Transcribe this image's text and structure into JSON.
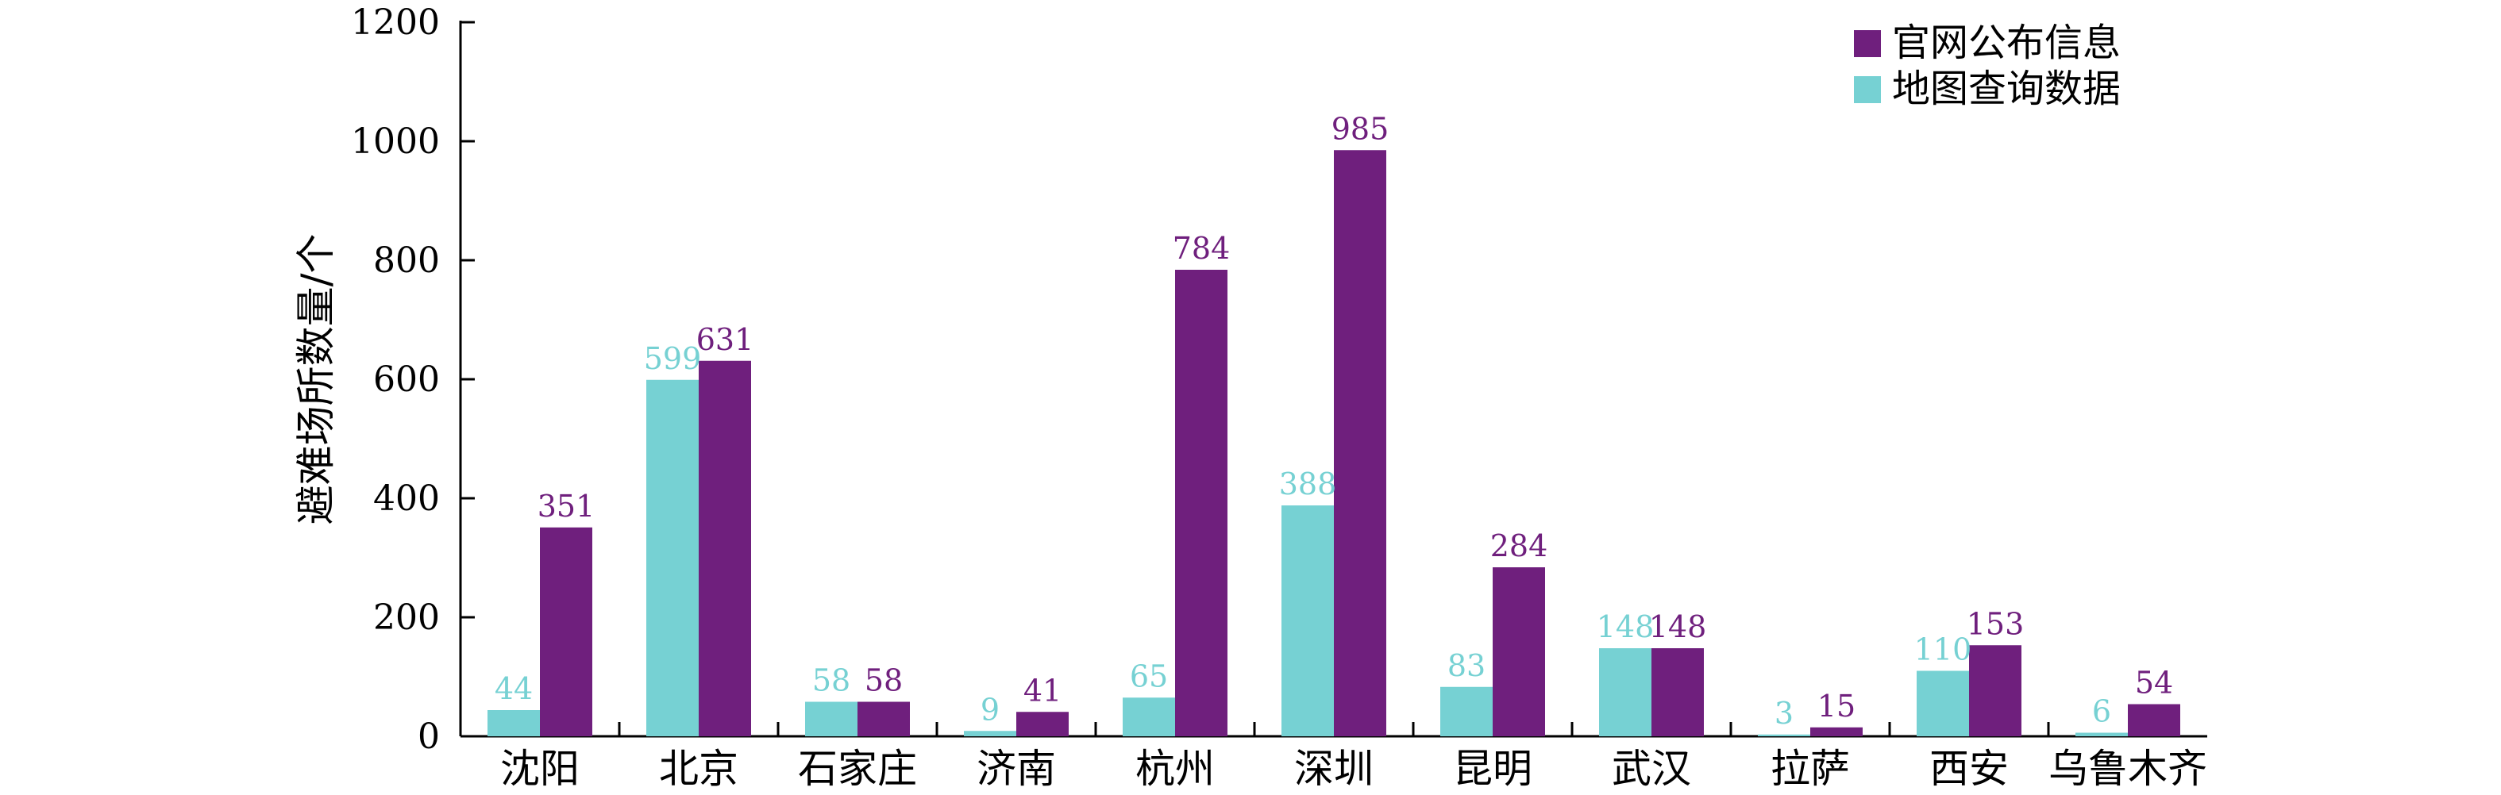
{
  "chart_data": {
    "type": "bar",
    "categories": [
      "沈阳",
      "北京",
      "石家庄",
      "济南",
      "杭州",
      "深圳",
      "昆明",
      "武汉",
      "拉萨",
      "西安",
      "乌鲁木齐"
    ],
    "series": [
      {
        "name": "地图查询数据",
        "color": "#76D1D3",
        "values": [
          44,
          599,
          58,
          9,
          65,
          388,
          83,
          148,
          3,
          110,
          6
        ]
      },
      {
        "name": "官网公布信息",
        "color": "#6F1F7D",
        "values": [
          351,
          631,
          58,
          41,
          784,
          985,
          284,
          148,
          15,
          153,
          54
        ]
      }
    ],
    "ylabel": "避难场所数量/个",
    "xlabel": "",
    "title": "",
    "ylim": [
      0,
      1200
    ],
    "yticks": [
      0,
      200,
      400,
      600,
      800,
      1000,
      1200
    ],
    "legend": {
      "position": "top-right",
      "order": [
        "官网公布信息",
        "地图查询数据"
      ]
    },
    "grid": false
  }
}
